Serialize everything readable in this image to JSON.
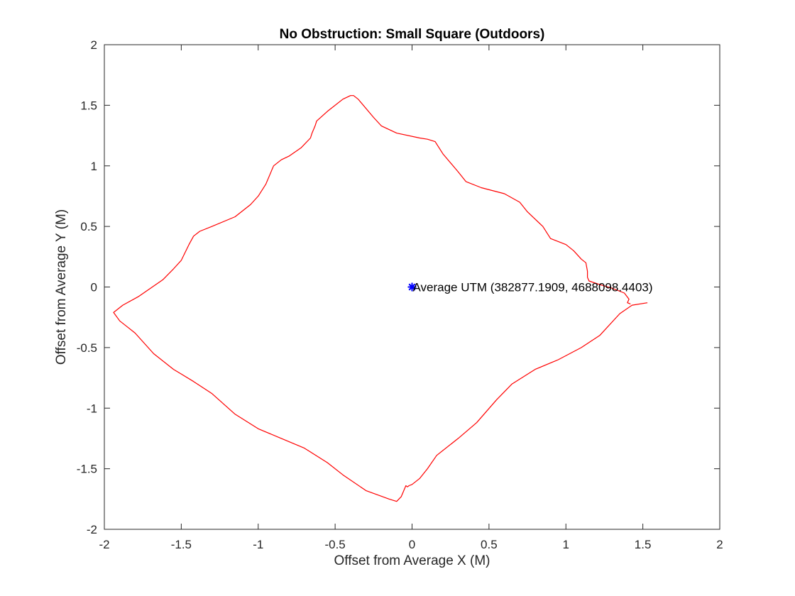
{
  "chart_data": {
    "type": "line",
    "title": "No Obstruction: Small Square (Outdoors)",
    "xlabel": "Offset from Average X (M)",
    "ylabel": "Offset from Average Y (M)",
    "xlim": [
      -2,
      2
    ],
    "ylim": [
      -2,
      2
    ],
    "xticks": [
      -2,
      -1.5,
      -1,
      -0.5,
      0,
      0.5,
      1,
      1.5,
      2
    ],
    "yticks": [
      -2,
      -1.5,
      -1,
      -0.5,
      0,
      0.5,
      1,
      1.5,
      2
    ],
    "grid": false,
    "series": [
      {
        "color": "#ff0000",
        "x": [
          1.53,
          1.43,
          1.35,
          1.22,
          1.1,
          0.95,
          0.8,
          0.65,
          0.55,
          0.42,
          0.3,
          0.16,
          0.1,
          0.05,
          0.0,
          -0.02,
          -0.03,
          -0.04,
          -0.07,
          -0.1,
          -0.15,
          -0.3,
          -0.45,
          -0.55,
          -0.7,
          -0.85,
          -1.0,
          -1.15,
          -1.3,
          -1.42,
          -1.55,
          -1.68,
          -1.8,
          -1.85,
          -1.9,
          -1.94,
          -1.88,
          -1.78,
          -1.62,
          -1.55,
          -1.5,
          -1.45,
          -1.42,
          -1.38,
          -1.3,
          -1.15,
          -1.05,
          -1.0,
          -0.95,
          -0.9,
          -0.85,
          -0.8,
          -0.72,
          -0.66,
          -0.65,
          -0.63,
          -0.62,
          -0.55,
          -0.45,
          -0.4,
          -0.38,
          -0.35,
          -0.25,
          -0.2,
          -0.1,
          0.05,
          0.1,
          0.15,
          0.2,
          0.3,
          0.35,
          0.45,
          0.6,
          0.7,
          0.75,
          0.85,
          0.9,
          1.0,
          1.05,
          1.1,
          1.13,
          1.14,
          1.14,
          1.15,
          1.22,
          1.3,
          1.38,
          1.41,
          1.4,
          1.42
        ],
        "y": [
          -0.13,
          -0.15,
          -0.22,
          -0.4,
          -0.5,
          -0.6,
          -0.68,
          -0.8,
          -0.93,
          -1.12,
          -1.25,
          -1.39,
          -1.5,
          -1.58,
          -1.63,
          -1.64,
          -1.65,
          -1.64,
          -1.73,
          -1.77,
          -1.75,
          -1.68,
          -1.55,
          -1.45,
          -1.33,
          -1.25,
          -1.17,
          -1.05,
          -0.88,
          -0.78,
          -0.68,
          -0.55,
          -0.38,
          -0.33,
          -0.28,
          -0.21,
          -0.15,
          -0.08,
          0.06,
          0.15,
          0.22,
          0.35,
          0.42,
          0.46,
          0.5,
          0.58,
          0.68,
          0.75,
          0.85,
          1.0,
          1.05,
          1.08,
          1.15,
          1.23,
          1.27,
          1.33,
          1.37,
          1.45,
          1.55,
          1.58,
          1.58,
          1.55,
          1.4,
          1.33,
          1.27,
          1.23,
          1.22,
          1.2,
          1.1,
          0.95,
          0.87,
          0.82,
          0.77,
          0.7,
          0.62,
          0.5,
          0.4,
          0.35,
          0.3,
          0.23,
          0.2,
          0.13,
          0.08,
          0.05,
          0.02,
          -0.01,
          -0.05,
          -0.1,
          -0.13,
          -0.14
        ]
      }
    ],
    "annotations": [
      {
        "x": 0,
        "y": 0,
        "marker": "*",
        "marker_color": "#0000ff",
        "text": "Average UTM (382877.1909, 4688098.4403)"
      }
    ]
  }
}
